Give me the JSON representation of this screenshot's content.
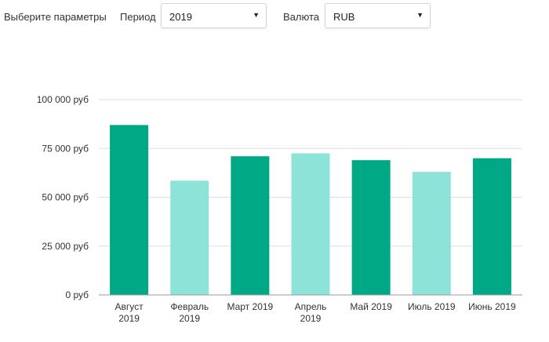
{
  "filters": {
    "params_label": "Выберите параметры",
    "period": {
      "label": "Период",
      "value": "2019"
    },
    "currency": {
      "label": "Валюта",
      "value": "RUB"
    }
  },
  "icons": {
    "dropdown": "chevron-down-icon"
  },
  "colors": {
    "dark_bar": "#00a886",
    "light_bar": "#8ee3d9",
    "grid": "#dddddd",
    "axis": "#999999"
  },
  "chart_data": {
    "type": "bar",
    "title": "",
    "xlabel": "",
    "ylabel": "",
    "ylim": [
      0,
      100000
    ],
    "grid": true,
    "y_ticks": [
      {
        "value": 0,
        "label": "0 руб"
      },
      {
        "value": 25000,
        "label": "25 000 руб"
      },
      {
        "value": 50000,
        "label": "50 000 руб"
      },
      {
        "value": 75000,
        "label": "75 000 руб"
      },
      {
        "value": 100000,
        "label": "100 000 руб"
      }
    ],
    "categories": [
      [
        "Август",
        "2019"
      ],
      [
        "Февраль",
        "2019"
      ],
      [
        "Март 2019"
      ],
      [
        "Апрель",
        "2019"
      ],
      [
        "Май 2019"
      ],
      [
        "Июль 2019"
      ],
      [
        "Июнь 2019"
      ]
    ],
    "values": [
      87000,
      58500,
      71000,
      72500,
      69000,
      63000,
      70000
    ],
    "bar_colors": [
      "#00a886",
      "#8ee3d9",
      "#00a886",
      "#8ee3d9",
      "#00a886",
      "#8ee3d9",
      "#00a886"
    ]
  }
}
